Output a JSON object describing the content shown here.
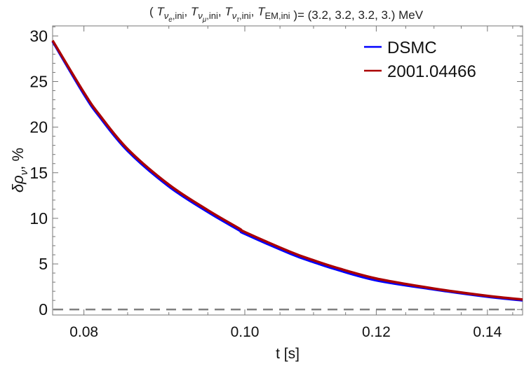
{
  "chart_data": {
    "type": "line",
    "title": {
      "prefix": "(",
      "items": [
        {
          "base": "T",
          "sub": "ν",
          "subsub": "e",
          "tail": ",ini"
        },
        {
          "base": "T",
          "sub": "ν",
          "subsub": "μ",
          "tail": ",ini"
        },
        {
          "base": "T",
          "sub": "ν",
          "subsub": "τ",
          "tail": ",ini"
        },
        {
          "base": "T",
          "sub": "EM,ini",
          "subsub": "",
          "tail": ""
        }
      ],
      "suffix": ")= (3.2, 3.2, 3.2, 3.) MeV"
    },
    "xlabel": "t [s]",
    "ylabel": "δρ",
    "ylabel_sub": "ν",
    "ylabel_unit": ", %",
    "x_scale": "log",
    "xlim": [
      0.0766,
      0.147
    ],
    "ylim": [
      -0.6,
      31.1
    ],
    "x_ticks": [
      "0.08",
      "0.10",
      "0.12",
      "0.14"
    ],
    "y_ticks": [
      "0",
      "5",
      "10",
      "15",
      "20",
      "25",
      "30"
    ],
    "grid": false,
    "legend_position": "top-right",
    "reference_line": {
      "y": 0,
      "style": "dashed",
      "color": "#808080"
    },
    "series": [
      {
        "name": "DSMC",
        "color": "#0000ff",
        "x": [
          0.0766,
          0.08,
          0.0817,
          0.085,
          0.09,
          0.095,
          0.0992,
          0.1,
          0.1066,
          0.11,
          0.1135,
          0.12,
          0.13,
          0.14,
          0.147
        ],
        "y": [
          29.4,
          23.6,
          21.2,
          17.4,
          13.5,
          10.7,
          8.7,
          8.3,
          6.1,
          5.2,
          4.4,
          3.2,
          2.2,
          1.4,
          1.0
        ]
      },
      {
        "name": "2001.04466",
        "color": "#aa0000",
        "x": [
          0.0766,
          0.08,
          0.0817,
          0.085,
          0.09,
          0.095,
          0.0992,
          0.1,
          0.1066,
          0.11,
          0.1135,
          0.12,
          0.13,
          0.14,
          0.147
        ],
        "y": [
          29.5,
          23.8,
          21.4,
          17.6,
          13.7,
          10.9,
          8.9,
          8.5,
          6.3,
          5.4,
          4.6,
          3.4,
          2.3,
          1.5,
          1.1
        ]
      }
    ]
  }
}
